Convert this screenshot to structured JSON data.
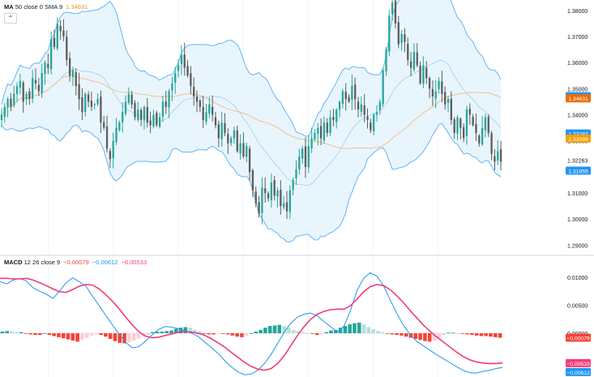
{
  "price_legend": {
    "indicator": "MA",
    "params": "50 close 0 SMA 9",
    "value": "1.34631",
    "value_color": "#f7931a"
  },
  "macd_legend": {
    "indicator": "MACD",
    "params": "12 26 close 9",
    "histogram": "−0.00079",
    "macd": "−0.00612",
    "signal": "−0.00533"
  },
  "colors": {
    "up": "#26a69a",
    "down": "#5d5d5d",
    "band_fill": "#e3f2fd",
    "band_line": "#64b5f6",
    "ma50": "#f0c090",
    "macd_line": "#2196f3",
    "signal_line": "#f23c78",
    "hist_up_strong": "#26a69a",
    "hist_up_weak": "#b2dfdb",
    "hist_down_strong": "#f44336",
    "hist_down_weak": "#ffcdd2"
  },
  "axis_labels": {
    "price": [
      "1.38000",
      "1.37000",
      "1.36000",
      "1.35000",
      "1.34000",
      "1.33000",
      "1.32263",
      "1.31000",
      "1.30000",
      "1.29000"
    ],
    "macd": [
      "0.01000",
      "0.00500",
      "0.00000"
    ]
  },
  "price_tags": [
    {
      "text": "1.34711",
      "color": "#2196f3"
    },
    {
      "text": "1.34631",
      "color": "#ef6c00"
    },
    {
      "text": "1.33283",
      "color": "#2196f3"
    },
    {
      "text": "1.33086",
      "color": "#f5a000"
    },
    {
      "text": "1.31855",
      "color": "#2196f3"
    }
  ],
  "macd_tags": [
    {
      "text": "−0.00079",
      "color": "#f44336"
    },
    {
      "text": "−0.00533",
      "color": "#f23c78"
    },
    {
      "text": "−0.00612",
      "color": "#2196f3"
    }
  ],
  "chart_data": [
    {
      "type": "candlestick",
      "ylim": [
        1.287,
        1.384
      ],
      "ohlc_close": [
        1.34,
        1.343,
        1.346,
        1.343,
        1.348,
        1.351,
        1.353,
        1.345,
        1.348,
        1.346,
        1.354,
        1.352,
        1.349,
        1.356,
        1.36,
        1.358,
        1.369,
        1.366,
        1.375,
        1.372,
        1.37,
        1.361,
        1.355,
        1.357,
        1.351,
        1.346,
        1.341,
        1.348,
        1.345,
        1.343,
        1.344,
        1.346,
        1.337,
        1.335,
        1.327,
        1.323,
        1.33,
        1.335,
        1.337,
        1.341,
        1.345,
        1.348,
        1.344,
        1.339,
        1.342,
        1.338,
        1.343,
        1.337,
        1.336,
        1.34,
        1.336,
        1.339,
        1.345,
        1.343,
        1.349,
        1.352,
        1.356,
        1.359,
        1.363,
        1.358,
        1.355,
        1.351,
        1.347,
        1.345,
        1.343,
        1.338,
        1.341,
        1.344,
        1.34,
        1.336,
        1.331,
        1.337,
        1.333,
        1.329,
        1.331,
        1.334,
        1.326,
        1.329,
        1.324,
        1.328,
        1.318,
        1.311,
        1.306,
        1.302,
        1.312,
        1.31,
        1.308,
        1.314,
        1.309,
        1.311,
        1.305,
        1.306,
        1.303,
        1.311,
        1.315,
        1.319,
        1.324,
        1.327,
        1.32,
        1.328,
        1.331,
        1.333,
        1.335,
        1.331,
        1.337,
        1.333,
        1.339,
        1.338,
        1.342,
        1.345,
        1.349,
        1.346,
        1.345,
        1.351,
        1.346,
        1.342,
        1.344,
        1.34,
        1.338,
        1.334,
        1.34,
        1.341,
        1.345,
        1.357,
        1.365,
        1.378,
        1.383,
        1.375,
        1.367,
        1.371,
        1.368,
        1.361,
        1.358,
        1.364,
        1.359,
        1.352,
        1.359,
        1.354,
        1.35,
        1.347,
        1.349,
        1.353,
        1.348,
        1.344,
        1.346,
        1.338,
        1.333,
        1.339,
        1.335,
        1.331,
        1.342,
        1.34,
        1.336,
        1.333,
        1.329,
        1.335,
        1.339,
        1.333,
        1.325,
        1.322,
        1.326,
        1.322
      ]
    },
    {
      "type": "line",
      "title": "MACD 12 26 close 9",
      "ylim": [
        -0.0078,
        0.0123
      ],
      "series": [
        {
          "name": "MACD",
          "values": [
            0.0092,
            0.0088,
            0.0095,
            0.0098,
            0.0093,
            0.0081,
            0.0075,
            0.007,
            0.0062,
            0.0075,
            0.009,
            0.0099,
            0.0092,
            0.0084,
            0.0066,
            0.0049,
            0.0032,
            0.0015,
            -0.0001,
            -0.0016,
            -0.0026,
            -0.0024,
            -0.0014,
            -0.0003,
            0.0007,
            0.0012,
            0.0011,
            0.0008,
            0.0004,
            0.0,
            -0.0006,
            -0.0016,
            -0.0026,
            -0.0036,
            -0.0049,
            -0.006,
            -0.0069,
            -0.0074,
            -0.0073,
            -0.0066,
            -0.0054,
            -0.0038,
            -0.0018,
            0.0002,
            0.0018,
            0.0029,
            0.0034,
            0.0036,
            0.0031,
            0.0021,
            0.0012,
            0.0002,
            0.0012,
            0.004,
            0.0076,
            0.0098,
            0.0108,
            0.0102,
            0.0085,
            0.006,
            0.0036,
            0.0015,
            -0.0002,
            -0.0014,
            -0.0022,
            -0.003,
            -0.0038,
            -0.0045,
            -0.0052,
            -0.0059,
            -0.0066,
            -0.007,
            -0.0071,
            -0.0068,
            -0.0066,
            -0.0063,
            -0.0061
          ]
        },
        {
          "name": "Signal",
          "values": [
            0.0098,
            0.0098,
            0.0097,
            0.0097,
            0.0098,
            0.0095,
            0.009,
            0.0085,
            0.0079,
            0.0074,
            0.0073,
            0.0078,
            0.0084,
            0.0087,
            0.0086,
            0.0079,
            0.0069,
            0.0057,
            0.0044,
            0.0029,
            0.0015,
            0.0003,
            -0.0005,
            -0.0008,
            -0.0007,
            -0.0004,
            -0.0001,
            0.0002,
            0.0003,
            0.0002,
            0.0,
            -0.0004,
            -0.001,
            -0.0017,
            -0.0025,
            -0.0034,
            -0.0043,
            -0.0052,
            -0.0059,
            -0.0064,
            -0.0066,
            -0.0063,
            -0.0054,
            -0.004,
            -0.0022,
            -0.0004,
            0.0012,
            0.0025,
            0.0034,
            0.0039,
            0.0042,
            0.0043,
            0.0043,
            0.0049,
            0.0061,
            0.0074,
            0.0083,
            0.0087,
            0.0085,
            0.0078,
            0.0067,
            0.0055,
            0.0041,
            0.0028,
            0.0015,
            0.0004,
            -0.0006,
            -0.0015,
            -0.0024,
            -0.0033,
            -0.0041,
            -0.0047,
            -0.0051,
            -0.0053,
            -0.0054,
            -0.0054,
            -0.0053
          ]
        }
      ],
      "histogram": [
        0.0003,
        0.0004,
        0.0003,
        0.0002,
        0.0002,
        -0.0001,
        -0.0002,
        -0.0003,
        -0.0003,
        0.0,
        -0.0003,
        -0.0005,
        -0.0007,
        -0.0009,
        -0.0011,
        -0.0013,
        -0.0015,
        -0.0012,
        -0.0008,
        -0.0004,
        -0.0002,
        -0.0003,
        -0.0006,
        -0.001,
        -0.0014,
        -0.0017,
        -0.0018,
        -0.0016,
        -0.0013,
        -0.0009,
        -0.0006,
        -0.0003,
        0.0002,
        0.0003,
        0.0003,
        0.0004,
        0.0005,
        0.0008,
        0.001,
        0.0011,
        0.001,
        0.0006,
        0.0003,
        -0.0001,
        -0.0002,
        -0.0002,
        -0.0001,
        -0.0001,
        -0.0002,
        -0.0004,
        -0.0006,
        -0.0007,
        -0.0004,
        0.0,
        0.0003,
        0.0006,
        0.001,
        0.0013,
        0.0014,
        0.0015,
        0.0013,
        0.001,
        0.0006,
        0.0004,
        0.0002,
        0.0,
        -0.0001,
        -0.0003,
        -0.0002,
        0.0002,
        0.0005,
        0.0006,
        0.001,
        0.0013,
        0.0016,
        0.0018,
        0.0019,
        0.0016,
        0.0011,
        0.0007,
        0.0004,
        0.0002,
        -0.0001,
        -0.0002,
        -0.0003,
        -0.0004,
        -0.0006,
        -0.0008,
        -0.001,
        -0.0012,
        -0.0014,
        -0.0015,
        -0.0013,
        -0.0008,
        -0.0003,
        0.0001,
        0.0001,
        0.0,
        -0.0001,
        -0.0002,
        -0.0003,
        -0.0004,
        -0.0005,
        -0.0005,
        -0.0006,
        -0.0007,
        -0.0008
      ]
    }
  ]
}
